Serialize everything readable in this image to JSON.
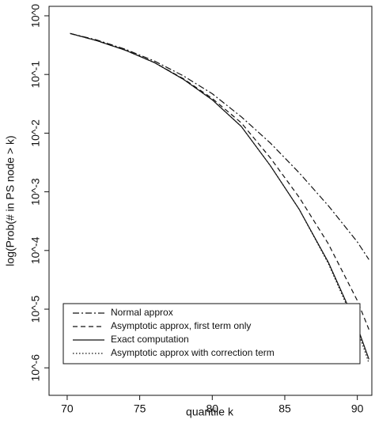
{
  "chart_data": {
    "type": "line",
    "x_label": "quantile k",
    "y_label": "log(Prob(# in PS node > k)",
    "log_y": true,
    "legend_position": "bottom-left",
    "xlim": [
      68.75,
      91
    ],
    "ylim": [
      1.45,
      3.4e-07
    ],
    "xticks": [
      70,
      75,
      80,
      85,
      90
    ],
    "yticks": [
      {
        "value": 1,
        "label": "10^0"
      },
      {
        "value": 0.1,
        "label": "10^-1"
      },
      {
        "value": 0.01,
        "label": "10^-2"
      },
      {
        "value": 0.001,
        "label": "10^-3"
      },
      {
        "value": 0.0001,
        "label": "10^-4"
      },
      {
        "value": 1e-05,
        "label": "10^-5"
      },
      {
        "value": 1e-06,
        "label": "10^-6"
      }
    ],
    "x": [
      70.2,
      72,
      74,
      76,
      78,
      80,
      82,
      84,
      86,
      88,
      90,
      90.8
    ],
    "series": [
      {
        "name": "Normal approx",
        "color": "#111111",
        "dash": "dashdot",
        "values": [
          0.5,
          0.39,
          0.27,
          0.17,
          0.095,
          0.047,
          0.019,
          0.0068,
          0.0021,
          0.00058,
          0.00014,
          7e-05
        ]
      },
      {
        "name": "Asymptotic approx, first term only",
        "color": "#111111",
        "dash": "dashed",
        "values": [
          0.5,
          0.38,
          0.26,
          0.16,
          0.085,
          0.039,
          0.015,
          0.0038,
          0.0008,
          0.00013,
          1.4e-05,
          4.5e-06
        ]
      },
      {
        "name": "Exact computation",
        "color": "#111111",
        "dash": "solid",
        "values": [
          0.5,
          0.38,
          0.26,
          0.16,
          0.083,
          0.037,
          0.013,
          0.0028,
          0.0005,
          6.3e-05,
          5e-06,
          1.4e-06
        ]
      },
      {
        "name": "Asymptotic approx with correction term",
        "color": "#111111",
        "dash": "dotted",
        "values": [
          0.5,
          0.38,
          0.26,
          0.16,
          0.083,
          0.037,
          0.013,
          0.0028,
          0.0005,
          6e-05,
          4.5e-06,
          1.2e-06
        ]
      }
    ]
  }
}
